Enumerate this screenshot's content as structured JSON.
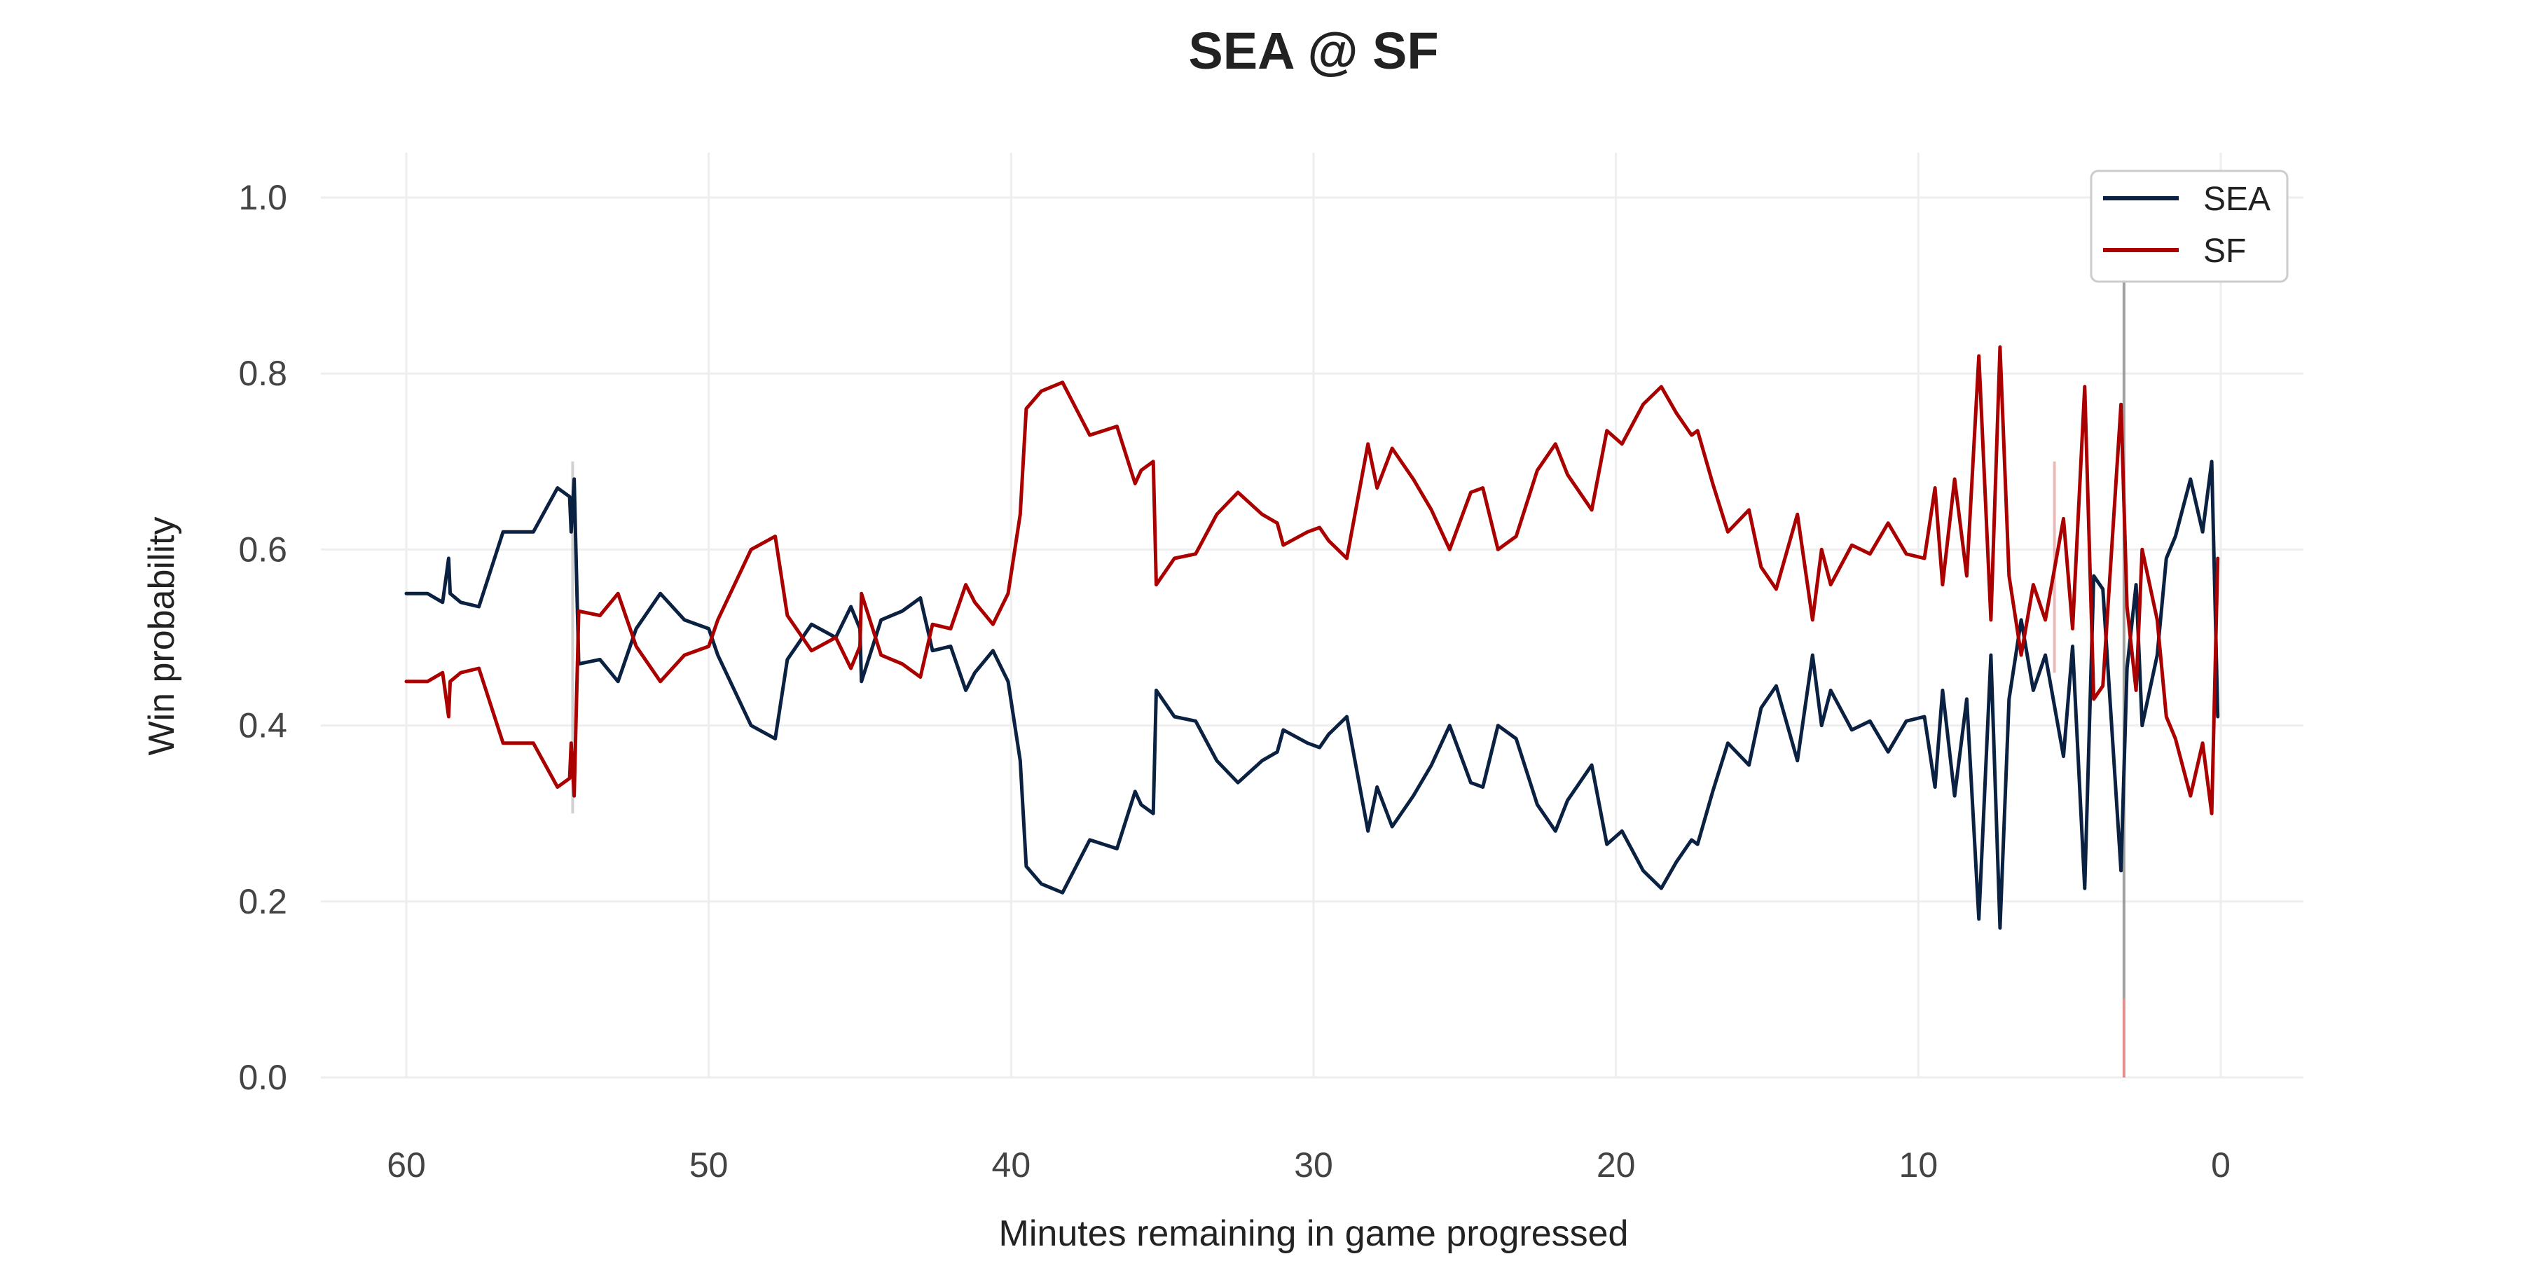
{
  "chart_data": {
    "type": "line",
    "title": "SEA @ SF",
    "xlabel": "Minutes remaining in game progressed",
    "ylabel": "Win probability",
    "xlim": [
      60,
      0
    ],
    "ylim": [
      0,
      1
    ],
    "x_ticks": [
      "60",
      "50",
      "40",
      "30",
      "20",
      "10",
      "0"
    ],
    "x_tick_values": [
      60,
      50,
      40,
      30,
      20,
      10,
      0
    ],
    "y_ticks": [
      "0.0",
      "0.2",
      "0.4",
      "0.6",
      "0.8",
      "1.0"
    ],
    "y_tick_values": [
      0,
      0.2,
      0.4,
      0.6,
      0.8,
      1.0
    ],
    "grid": true,
    "legend": "top-right",
    "colors": {
      "SEA": "#0b2142",
      "SF": "#aa0000",
      "grid": "#eeeeee",
      "marker": "#999999"
    },
    "series": [
      {
        "name": "SEA",
        "x": [
          60,
          59.3,
          58.8,
          58.6,
          58.55,
          58.2,
          57.6,
          56.8,
          55.8,
          55.0,
          54.6,
          54.55,
          54.45,
          54.3,
          53.6,
          53.0,
          52.4,
          51.6,
          50.8,
          50.0,
          49.7,
          48.6,
          47.8,
          47.4,
          46.6,
          45.8,
          45.3,
          45.0,
          44.95,
          44.3,
          43.6,
          43.0,
          42.6,
          42.0,
          41.5,
          41.2,
          40.6,
          40.1,
          39.7,
          39.5,
          39.0,
          38.3,
          37.4,
          36.5,
          35.9,
          35.7,
          35.3,
          35.2,
          34.6,
          33.9,
          33.2,
          32.5,
          31.7,
          31.2,
          31.0,
          30.2,
          29.8,
          29.5,
          28.9,
          28.2,
          27.9,
          27.4,
          26.7,
          26.1,
          25.5,
          24.8,
          24.4,
          23.9,
          23.3,
          22.6,
          22.0,
          21.6,
          20.8,
          20.3,
          19.8,
          19.1,
          18.5,
          18.0,
          17.5,
          17.3,
          16.8,
          16.3,
          15.6,
          15.2,
          14.7,
          14.0,
          13.5,
          13.2,
          12.9,
          12.2,
          11.6,
          11.0,
          10.4,
          9.8,
          9.45,
          9.2,
          8.8,
          8.4,
          8.0,
          7.6,
          7.3,
          7.0,
          6.6,
          6.2,
          5.8,
          5.2,
          4.9,
          4.5,
          4.2,
          3.9,
          3.3,
          3.1,
          2.8,
          2.6,
          2.1,
          1.8,
          1.5,
          1.0,
          0.6,
          0.3,
          0.1
        ],
        "y": [
          0.55,
          0.55,
          0.54,
          0.59,
          0.55,
          0.54,
          0.535,
          0.62,
          0.62,
          0.67,
          0.66,
          0.62,
          0.68,
          0.47,
          0.475,
          0.45,
          0.51,
          0.55,
          0.52,
          0.51,
          0.48,
          0.4,
          0.385,
          0.475,
          0.515,
          0.5,
          0.535,
          0.51,
          0.45,
          0.52,
          0.53,
          0.545,
          0.485,
          0.49,
          0.44,
          0.46,
          0.485,
          0.45,
          0.36,
          0.24,
          0.22,
          0.21,
          0.27,
          0.26,
          0.325,
          0.31,
          0.3,
          0.44,
          0.41,
          0.405,
          0.36,
          0.335,
          0.36,
          0.37,
          0.395,
          0.38,
          0.375,
          0.39,
          0.41,
          0.28,
          0.33,
          0.285,
          0.32,
          0.355,
          0.4,
          0.335,
          0.33,
          0.4,
          0.385,
          0.31,
          0.28,
          0.315,
          0.355,
          0.265,
          0.28,
          0.235,
          0.215,
          0.245,
          0.27,
          0.265,
          0.325,
          0.38,
          0.355,
          0.42,
          0.445,
          0.36,
          0.48,
          0.4,
          0.44,
          0.395,
          0.405,
          0.37,
          0.405,
          0.41,
          0.33,
          0.44,
          0.32,
          0.43,
          0.18,
          0.48,
          0.17,
          0.43,
          0.52,
          0.44,
          0.48,
          0.365,
          0.49,
          0.215,
          0.57,
          0.555,
          0.235,
          0.465,
          0.56,
          0.4,
          0.48,
          0.59,
          0.615,
          0.68,
          0.62,
          0.7,
          0.41
        ]
      },
      {
        "name": "SF",
        "x": [
          60,
          59.3,
          58.8,
          58.6,
          58.55,
          58.2,
          57.6,
          56.8,
          55.8,
          55.0,
          54.6,
          54.55,
          54.45,
          54.3,
          53.6,
          53.0,
          52.4,
          51.6,
          50.8,
          50.0,
          49.7,
          48.6,
          47.8,
          47.4,
          46.6,
          45.8,
          45.3,
          45.0,
          44.95,
          44.3,
          43.6,
          43.0,
          42.6,
          42.0,
          41.5,
          41.2,
          40.6,
          40.1,
          39.7,
          39.5,
          39.0,
          38.3,
          37.4,
          36.5,
          35.9,
          35.7,
          35.3,
          35.2,
          34.6,
          33.9,
          33.2,
          32.5,
          31.7,
          31.2,
          31.0,
          30.2,
          29.8,
          29.5,
          28.9,
          28.2,
          27.9,
          27.4,
          26.7,
          26.1,
          25.5,
          24.8,
          24.4,
          23.9,
          23.3,
          22.6,
          22.0,
          21.6,
          20.8,
          20.3,
          19.8,
          19.1,
          18.5,
          18.0,
          17.5,
          17.3,
          16.8,
          16.3,
          15.6,
          15.2,
          14.7,
          14.0,
          13.5,
          13.2,
          12.9,
          12.2,
          11.6,
          11.0,
          10.4,
          9.8,
          9.45,
          9.2,
          8.8,
          8.4,
          8.0,
          7.6,
          7.3,
          7.0,
          6.6,
          6.2,
          5.8,
          5.2,
          4.9,
          4.5,
          4.2,
          3.9,
          3.3,
          3.1,
          2.8,
          2.6,
          2.1,
          1.8,
          1.5,
          1.0,
          0.6,
          0.3,
          0.1
        ],
        "y": [
          0.45,
          0.45,
          0.46,
          0.41,
          0.45,
          0.46,
          0.465,
          0.38,
          0.38,
          0.33,
          0.34,
          0.38,
          0.32,
          0.53,
          0.525,
          0.55,
          0.49,
          0.45,
          0.48,
          0.49,
          0.52,
          0.6,
          0.615,
          0.525,
          0.485,
          0.5,
          0.465,
          0.49,
          0.55,
          0.48,
          0.47,
          0.455,
          0.515,
          0.51,
          0.56,
          0.54,
          0.515,
          0.55,
          0.64,
          0.76,
          0.78,
          0.79,
          0.73,
          0.74,
          0.675,
          0.69,
          0.7,
          0.56,
          0.59,
          0.595,
          0.64,
          0.665,
          0.64,
          0.63,
          0.605,
          0.62,
          0.625,
          0.61,
          0.59,
          0.72,
          0.67,
          0.715,
          0.68,
          0.645,
          0.6,
          0.665,
          0.67,
          0.6,
          0.615,
          0.69,
          0.72,
          0.685,
          0.645,
          0.735,
          0.72,
          0.765,
          0.785,
          0.755,
          0.73,
          0.735,
          0.675,
          0.62,
          0.645,
          0.58,
          0.555,
          0.64,
          0.52,
          0.6,
          0.56,
          0.605,
          0.595,
          0.63,
          0.595,
          0.59,
          0.67,
          0.56,
          0.68,
          0.57,
          0.82,
          0.52,
          0.83,
          0.57,
          0.48,
          0.56,
          0.52,
          0.635,
          0.51,
          0.785,
          0.43,
          0.445,
          0.765,
          0.535,
          0.44,
          0.6,
          0.52,
          0.41,
          0.385,
          0.32,
          0.38,
          0.3,
          0.59
        ]
      }
    ],
    "markers": [
      {
        "x": 54.5,
        "y_low": 0.3,
        "y_high": 0.7,
        "color": "#999999",
        "opacity": 0.45
      },
      {
        "x": 3.2,
        "y_low": 0.09,
        "y_high": 0.905,
        "color": "#888888",
        "opacity": 0.8
      },
      {
        "x": 3.2,
        "y_low": 0.0,
        "y_high": 0.09,
        "color": "#cc3333",
        "opacity": 0.55
      },
      {
        "x": 5.5,
        "y_low": 0.46,
        "y_high": 0.7,
        "color": "#cc3333",
        "opacity": 0.35
      }
    ]
  }
}
